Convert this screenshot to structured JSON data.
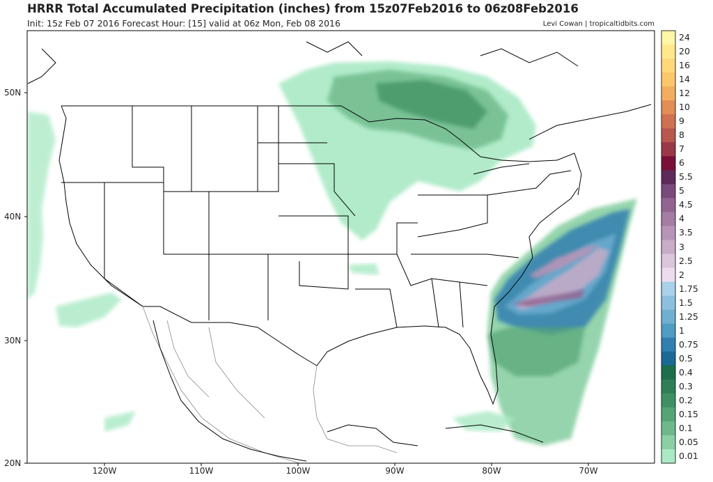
{
  "header": {
    "title": "HRRR Total Accumulated Precipitation (inches) from 15z07Feb2016 to 06z08Feb2016",
    "subtitle": "Init: 15z Feb 07 2016   Forecast Hour: [15]   valid at 06z Mon, Feb 08 2016",
    "credit": "Levi Cowan | tropicaltidbits.com"
  },
  "axes": {
    "lat_labels": [
      "50N",
      "40N",
      "30N",
      "20N"
    ],
    "lon_labels": [
      "120W",
      "110W",
      "100W",
      "90W",
      "80W",
      "70W"
    ]
  },
  "colorbar": {
    "levels": [
      "24",
      "20",
      "16",
      "14",
      "12",
      "10",
      "9",
      "8",
      "7",
      "6",
      "5.5",
      "5",
      "4.5",
      "4",
      "3.5",
      "3",
      "2.5",
      "2",
      "1.75",
      "1.5",
      "1.25",
      "1",
      "0.75",
      "0.5",
      "0.4",
      "0.3",
      "0.2",
      "0.15",
      "0.1",
      "0.05",
      "0.01"
    ],
    "colors": [
      "#fff6a6",
      "#ffe88c",
      "#ffd878",
      "#fcc66a",
      "#f2ae5e",
      "#e28e55",
      "#cf7050",
      "#b8574d",
      "#9a3748",
      "#7a1038",
      "#5e2a5a",
      "#7a4a7c",
      "#936491",
      "#a47ca4",
      "#b794b7",
      "#c8acc8",
      "#dcc6dc",
      "#ecdcec",
      "#a9d2ea",
      "#8cc0de",
      "#6fafd2",
      "#4f9cc4",
      "#307fb0",
      "#1b6a96",
      "#1d6e4a",
      "#2e7f56",
      "#3f9164",
      "#54a476",
      "#6db98a",
      "#8ad0a4",
      "#a9e9c4"
    ]
  },
  "map": {
    "region": "United States",
    "projection": "cylindrical lat/lon",
    "lon_range": [
      -128,
      -63
    ],
    "lat_range": [
      20,
      55
    ]
  },
  "colors": {
    "border": "#000000",
    "state_line": "#000000",
    "mexico_line": "#888888"
  }
}
